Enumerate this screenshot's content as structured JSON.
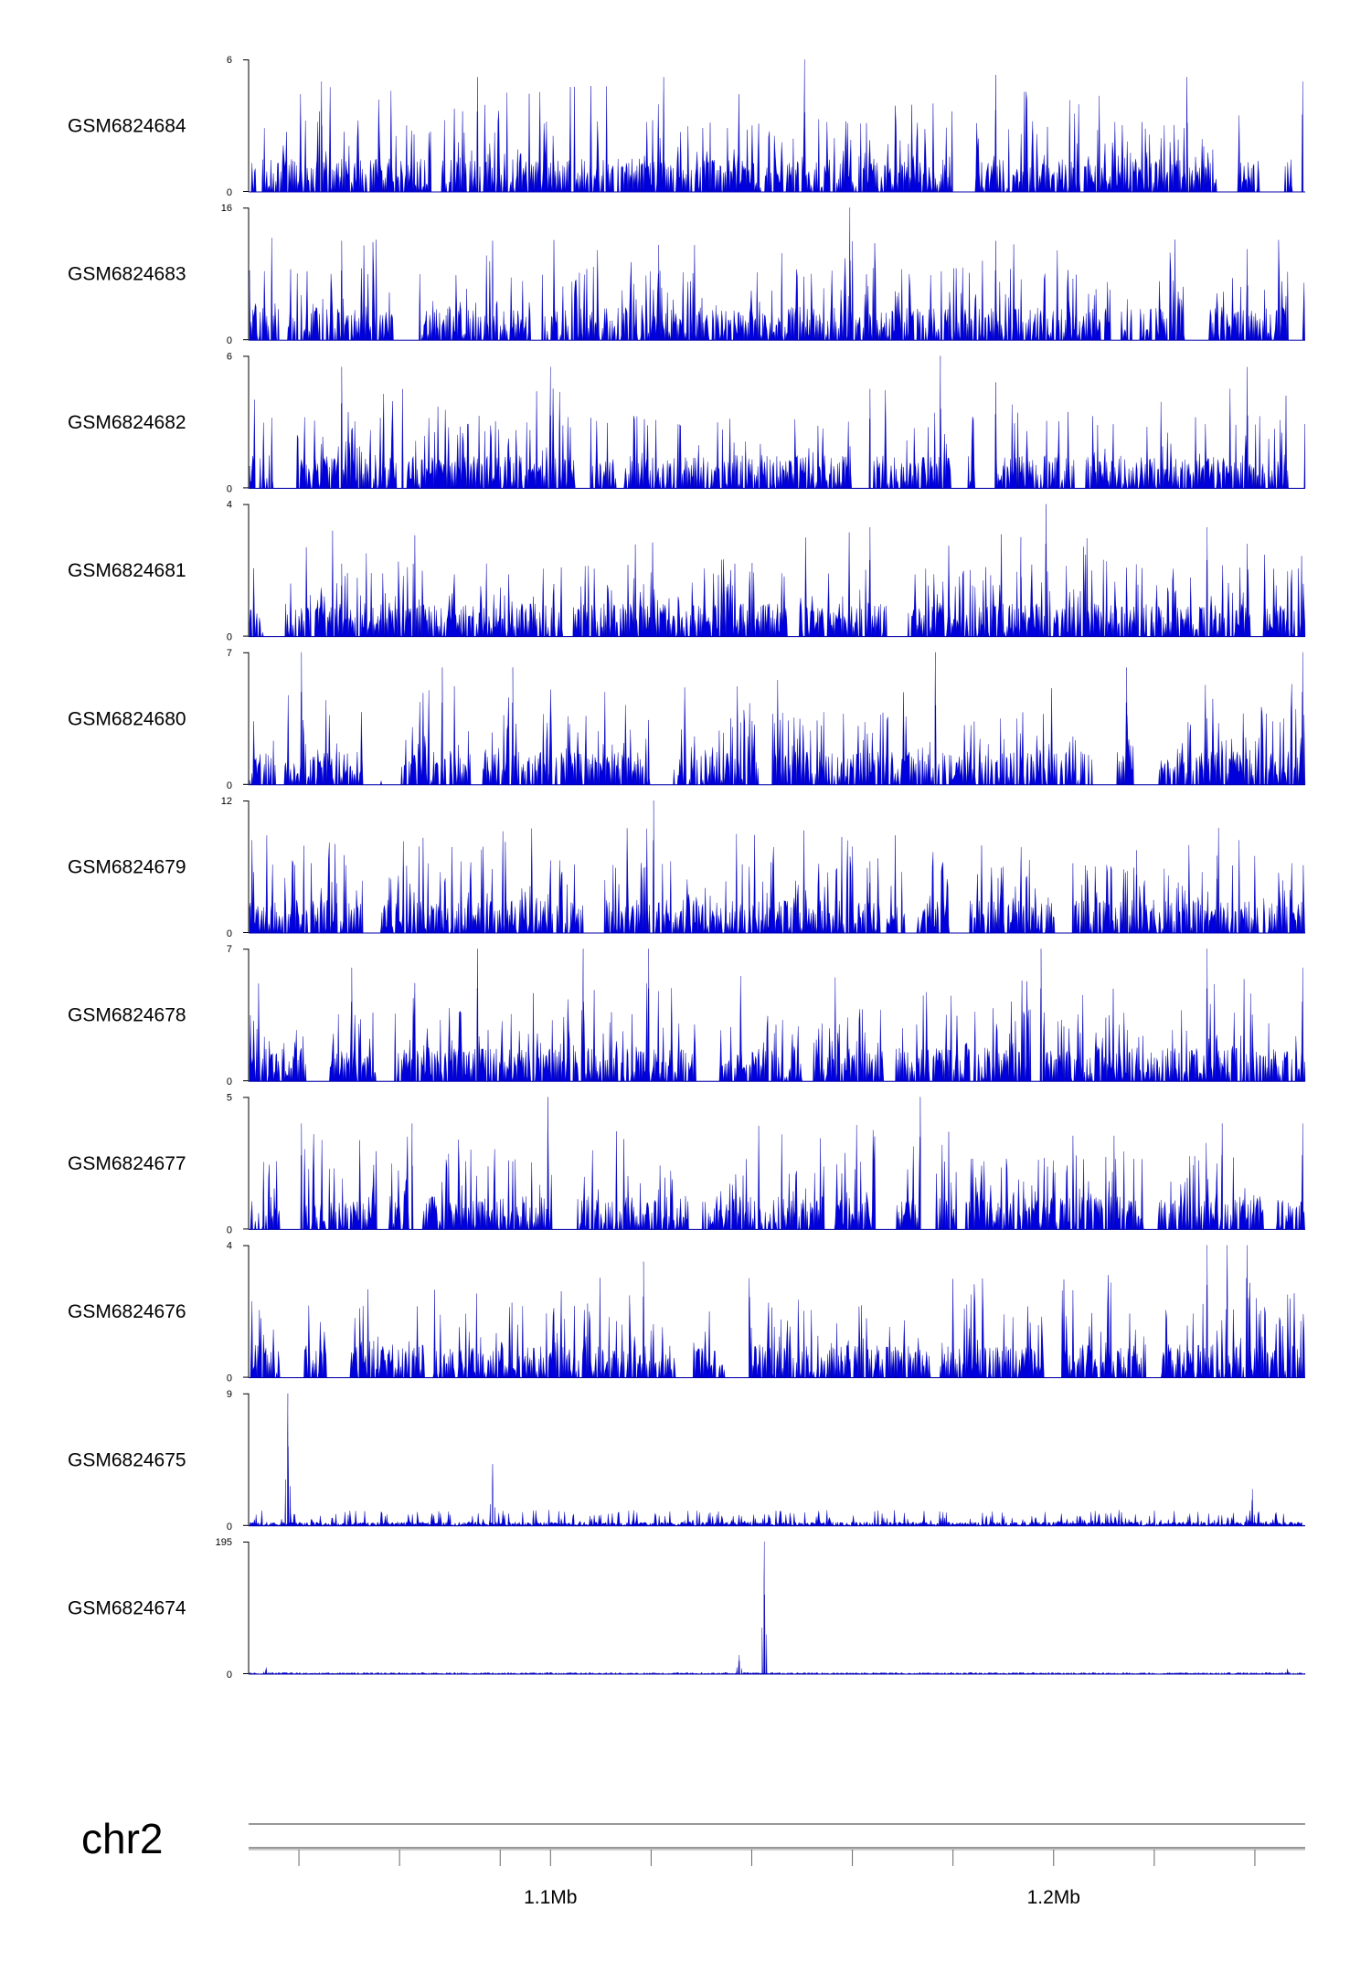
{
  "chart_data": {
    "type": "area",
    "chromosome": "chr2",
    "x_unit": "Mb",
    "x_range": [
      1.04,
      1.25
    ],
    "x_ticks": [
      1.05,
      1.07,
      1.09,
      1.1,
      1.12,
      1.14,
      1.16,
      1.18,
      1.2,
      1.22,
      1.24
    ],
    "x_tick_labels": [
      {
        "value": 1.1,
        "label": "1.1Mb"
      },
      {
        "value": 1.2,
        "label": "1.2Mb"
      }
    ],
    "series_color": "#0000dd",
    "grid": false,
    "tracks": [
      {
        "sample": "GSM6824684",
        "ymin": "0",
        "ymax": "6",
        "ylim": [
          0,
          6
        ],
        "peaks": [
          {
            "x": 1.0545,
            "y": 5.0
          },
          {
            "x": 1.0855,
            "y": 5.2
          },
          {
            "x": 1.1225,
            "y": 5.2
          },
          {
            "x": 1.1505,
            "y": 6.0
          },
          {
            "x": 1.1885,
            "y": 5.3
          },
          {
            "x": 1.2265,
            "y": 5.2
          },
          {
            "x": 1.2495,
            "y": 5.0
          }
        ]
      },
      {
        "sample": "GSM6824683",
        "ymin": "0",
        "ymax": "16",
        "ylim": [
          0,
          16
        ],
        "peaks": [
          {
            "x": 1.0585,
            "y": 12.0
          },
          {
            "x": 1.0885,
            "y": 12.0
          },
          {
            "x": 1.1215,
            "y": 11.5
          },
          {
            "x": 1.1595,
            "y": 16.0
          },
          {
            "x": 1.1885,
            "y": 12.0
          },
          {
            "x": 1.2385,
            "y": 11.0
          }
        ]
      },
      {
        "sample": "GSM6824682",
        "ymin": "0",
        "ymax": "6",
        "ylim": [
          0,
          6
        ],
        "peaks": [
          {
            "x": 1.0585,
            "y": 5.5
          },
          {
            "x": 1.1,
            "y": 5.5
          },
          {
            "x": 1.1635,
            "y": 4.5
          },
          {
            "x": 1.1775,
            "y": 6.0
          },
          {
            "x": 1.1885,
            "y": 4.8
          },
          {
            "x": 1.2385,
            "y": 5.5
          }
        ]
      },
      {
        "sample": "GSM6824681",
        "ymin": "0",
        "ymax": "4",
        "ylim": [
          0,
          4
        ],
        "peaks": [
          {
            "x": 1.0585,
            "y": 2.2
          },
          {
            "x": 1.1635,
            "y": 3.3
          },
          {
            "x": 1.1935,
            "y": 3.0
          },
          {
            "x": 1.1985,
            "y": 4.0
          },
          {
            "x": 1.2305,
            "y": 3.3
          },
          {
            "x": 1.2385,
            "y": 2.8
          }
        ]
      },
      {
        "sample": "GSM6824680",
        "ymin": "0",
        "ymax": "7",
        "ylim": [
          0,
          7
        ],
        "peaks": [
          {
            "x": 1.0505,
            "y": 7.0
          },
          {
            "x": 1.0785,
            "y": 6.2
          },
          {
            "x": 1.0925,
            "y": 6.2
          },
          {
            "x": 1.1765,
            "y": 7.0
          },
          {
            "x": 1.2145,
            "y": 6.2
          },
          {
            "x": 1.2495,
            "y": 7.0
          }
        ]
      },
      {
        "sample": "GSM6824679",
        "ymin": "0",
        "ymax": "12",
        "ylim": [
          0,
          12
        ],
        "peaks": [
          {
            "x": 1.0575,
            "y": 4.5
          },
          {
            "x": 1.1205,
            "y": 12.0
          },
          {
            "x": 1.1395,
            "y": 6.0
          },
          {
            "x": 1.1635,
            "y": 6.5
          },
          {
            "x": 1.2165,
            "y": 7.5
          },
          {
            "x": 1.2325,
            "y": 7.0
          }
        ]
      },
      {
        "sample": "GSM6824678",
        "ymin": "0",
        "ymax": "7",
        "ylim": [
          0,
          7
        ],
        "peaks": [
          {
            "x": 1.0605,
            "y": 6.0
          },
          {
            "x": 1.0855,
            "y": 7.0
          },
          {
            "x": 1.1065,
            "y": 7.0
          },
          {
            "x": 1.1195,
            "y": 7.0
          },
          {
            "x": 1.1975,
            "y": 7.0
          },
          {
            "x": 1.2305,
            "y": 7.0
          },
          {
            "x": 1.2495,
            "y": 6.0
          }
        ]
      },
      {
        "sample": "GSM6824677",
        "ymin": "0",
        "ymax": "5",
        "ylim": [
          0,
          5
        ],
        "peaks": [
          {
            "x": 1.0505,
            "y": 4.0
          },
          {
            "x": 1.0725,
            "y": 4.0
          },
          {
            "x": 1.0995,
            "y": 5.0
          },
          {
            "x": 1.1735,
            "y": 5.0
          },
          {
            "x": 1.2335,
            "y": 4.0
          },
          {
            "x": 1.2495,
            "y": 4.0
          }
        ]
      },
      {
        "sample": "GSM6824676",
        "ymin": "0",
        "ymax": "4",
        "ylim": [
          0,
          4
        ],
        "peaks": [
          {
            "x": 1.1185,
            "y": 3.5
          },
          {
            "x": 1.1395,
            "y": 3.0
          },
          {
            "x": 1.2305,
            "y": 4.0
          },
          {
            "x": 1.2345,
            "y": 4.0
          },
          {
            "x": 1.2385,
            "y": 4.0
          }
        ]
      },
      {
        "sample": "GSM6824675",
        "ymin": "0",
        "ymax": "9",
        "ylim": [
          0,
          9
        ],
        "peaks": [
          {
            "x": 1.0478,
            "y": 9.0
          },
          {
            "x": 1.0885,
            "y": 4.2
          },
          {
            "x": 1.2395,
            "y": 2.5
          }
        ]
      },
      {
        "sample": "GSM6824674",
        "ymin": "0",
        "ymax": "195",
        "ylim": [
          0,
          195
        ],
        "peaks": [
          {
            "x": 1.0435,
            "y": 10
          },
          {
            "x": 1.1375,
            "y": 28
          },
          {
            "x": 1.1425,
            "y": 195
          },
          {
            "x": 1.2465,
            "y": 8
          }
        ]
      }
    ]
  }
}
